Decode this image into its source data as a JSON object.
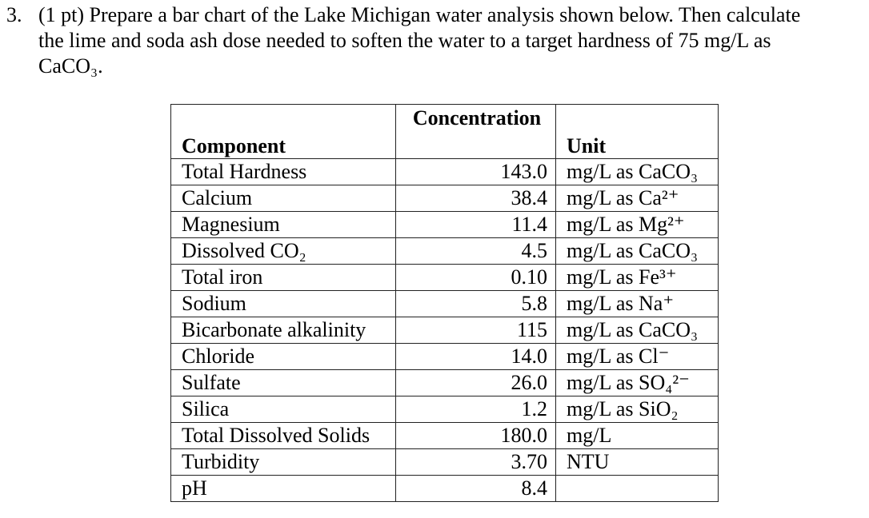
{
  "problem": {
    "number": "3.",
    "line1": "(1 pt) Prepare a bar chart of the Lake Michigan water analysis shown below. Then calculate",
    "line2": "the lime and soda ash dose needed to soften the water to a target hardness of 75 mg/L as",
    "line3": "CaCO₃."
  },
  "table": {
    "headers": {
      "component": "Component",
      "concentration": "Concentration",
      "unit": "Unit"
    },
    "rows": [
      {
        "component": "Total Hardness",
        "concentration": "143.0",
        "unit": "mg/L as CaCO₃"
      },
      {
        "component": "Calcium",
        "concentration": "38.4",
        "unit": "mg/L as Ca²⁺"
      },
      {
        "component": "Magnesium",
        "concentration": "11.4",
        "unit": "mg/L as Mg²⁺"
      },
      {
        "component": "Dissolved CO₂",
        "concentration": "4.5",
        "unit": "mg/L as CaCO₃"
      },
      {
        "component": "Total iron",
        "concentration": "0.10",
        "unit": "mg/L as Fe³⁺"
      },
      {
        "component": "Sodium",
        "concentration": "5.8",
        "unit": "mg/L as Na⁺"
      },
      {
        "component": "Bicarbonate alkalinity",
        "concentration": "115",
        "unit": "mg/L as CaCO₃"
      },
      {
        "component": "Chloride",
        "concentration": "14.0",
        "unit": "mg/L as Cl⁻"
      },
      {
        "component": "Sulfate",
        "concentration": "26.0",
        "unit": "mg/L as SO₄²⁻"
      },
      {
        "component": "Silica",
        "concentration": "1.2",
        "unit": "mg/L as SiO₂"
      },
      {
        "component": "Total Dissolved Solids",
        "concentration": "180.0",
        "unit": "mg/L"
      },
      {
        "component": "Turbidity",
        "concentration": "3.70",
        "unit": "NTU"
      },
      {
        "component": "pH",
        "concentration": "8.4",
        "unit": ""
      }
    ]
  }
}
